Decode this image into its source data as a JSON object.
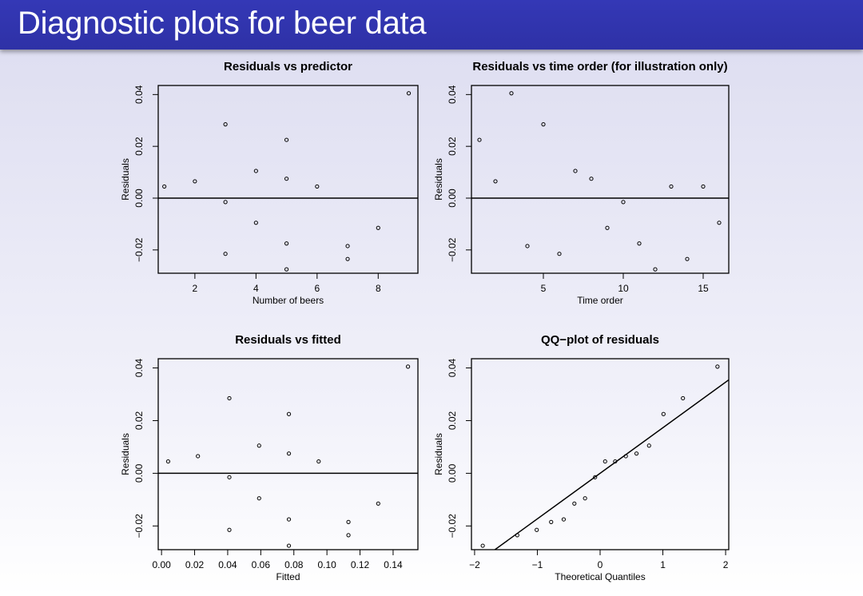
{
  "slide": {
    "title": "Diagnostic plots for beer data"
  },
  "chart_data": [
    {
      "type": "scatter",
      "title": "Residuals vs predictor",
      "xlabel": "Number of beers",
      "ylabel": "Residuals",
      "xlim": [
        0.8,
        9.3
      ],
      "ylim": [
        -0.029,
        0.0435
      ],
      "xticks": [
        2,
        4,
        6,
        8
      ],
      "xtick_labels": [
        "2",
        "4",
        "6",
        "8"
      ],
      "yticks": [
        -0.02,
        0.0,
        0.02,
        0.04
      ],
      "ytick_labels": [
        "−0.02",
        "0.00",
        "0.02",
        "0.04"
      ],
      "hline": 0,
      "x": [
        1,
        2,
        3,
        3,
        3,
        4,
        4,
        5,
        5,
        5,
        5,
        6,
        7,
        7,
        8,
        9
      ],
      "y": [
        0.0045,
        0.0065,
        0.0285,
        -0.0015,
        -0.0215,
        0.0105,
        -0.0095,
        0.0225,
        0.0075,
        -0.0175,
        -0.0275,
        0.0045,
        -0.0185,
        -0.0235,
        -0.0115,
        0.0405
      ]
    },
    {
      "type": "scatter",
      "title": "Residuals vs time order (for illustration only)",
      "xlabel": "Time order",
      "ylabel": "Residuals",
      "xlim": [
        0.5,
        16.6
      ],
      "ylim": [
        -0.029,
        0.0435
      ],
      "xticks": [
        5,
        10,
        15
      ],
      "xtick_labels": [
        "5",
        "10",
        "15"
      ],
      "yticks": [
        -0.02,
        0.0,
        0.02,
        0.04
      ],
      "ytick_labels": [
        "−0.02",
        "0.00",
        "0.02",
        "0.04"
      ],
      "hline": 0,
      "x": [
        1,
        2,
        3,
        4,
        5,
        6,
        7,
        8,
        9,
        10,
        11,
        12,
        13,
        14,
        15,
        16
      ],
      "y": [
        0.0225,
        0.0065,
        0.0405,
        -0.0185,
        0.0285,
        -0.0215,
        0.0105,
        0.0075,
        -0.0115,
        -0.0015,
        -0.0175,
        -0.0275,
        0.0045,
        -0.0235,
        0.0045,
        -0.0095
      ]
    },
    {
      "type": "scatter",
      "title": "Residuals vs fitted",
      "xlabel": "Fitted",
      "ylabel": "Residuals",
      "xlim": [
        -0.002,
        0.155
      ],
      "ylim": [
        -0.029,
        0.0435
      ],
      "xticks": [
        0.0,
        0.02,
        0.04,
        0.06,
        0.08,
        0.1,
        0.12,
        0.14
      ],
      "xtick_labels": [
        "0.00",
        "0.02",
        "0.04",
        "0.06",
        "0.08",
        "0.10",
        "0.12",
        "0.14"
      ],
      "yticks": [
        -0.02,
        0.0,
        0.02,
        0.04
      ],
      "ytick_labels": [
        "−0.02",
        "0.00",
        "0.02",
        "0.04"
      ],
      "hline": 0,
      "x": [
        0.004,
        0.022,
        0.041,
        0.041,
        0.041,
        0.059,
        0.059,
        0.077,
        0.077,
        0.077,
        0.077,
        0.095,
        0.113,
        0.113,
        0.131,
        0.149
      ],
      "y": [
        0.0045,
        0.0065,
        0.0285,
        -0.0015,
        -0.0215,
        0.0105,
        -0.0095,
        0.0225,
        0.0075,
        -0.0175,
        -0.0275,
        0.0045,
        -0.0185,
        -0.0235,
        -0.0115,
        0.0405
      ]
    },
    {
      "type": "scatter",
      "title": "QQ−plot of residuals",
      "xlabel": "Theoretical Quantiles",
      "ylabel": "Residuals",
      "xlim": [
        -2.05,
        2.05
      ],
      "ylim": [
        -0.029,
        0.0435
      ],
      "xticks": [
        -2,
        -1,
        0,
        1,
        2
      ],
      "xtick_labels": [
        "−2",
        "−1",
        "0",
        "1",
        "2"
      ],
      "yticks": [
        -0.02,
        0.0,
        0.02,
        0.04
      ],
      "ytick_labels": [
        "−0.02",
        "0.00",
        "0.02",
        "0.04"
      ],
      "qq_line": {
        "intercept": 0.0,
        "slope": 0.0173
      },
      "x": [
        -1.87,
        -1.32,
        -1.01,
        -0.78,
        -0.58,
        -0.41,
        -0.24,
        -0.08,
        0.08,
        0.24,
        0.41,
        0.58,
        0.78,
        1.01,
        1.32,
        1.87
      ],
      "y": [
        -0.0275,
        -0.0235,
        -0.0215,
        -0.0185,
        -0.0175,
        -0.0115,
        -0.0095,
        -0.0015,
        0.0045,
        0.0045,
        0.0065,
        0.0075,
        0.0105,
        0.0225,
        0.0285,
        0.0405
      ]
    }
  ]
}
